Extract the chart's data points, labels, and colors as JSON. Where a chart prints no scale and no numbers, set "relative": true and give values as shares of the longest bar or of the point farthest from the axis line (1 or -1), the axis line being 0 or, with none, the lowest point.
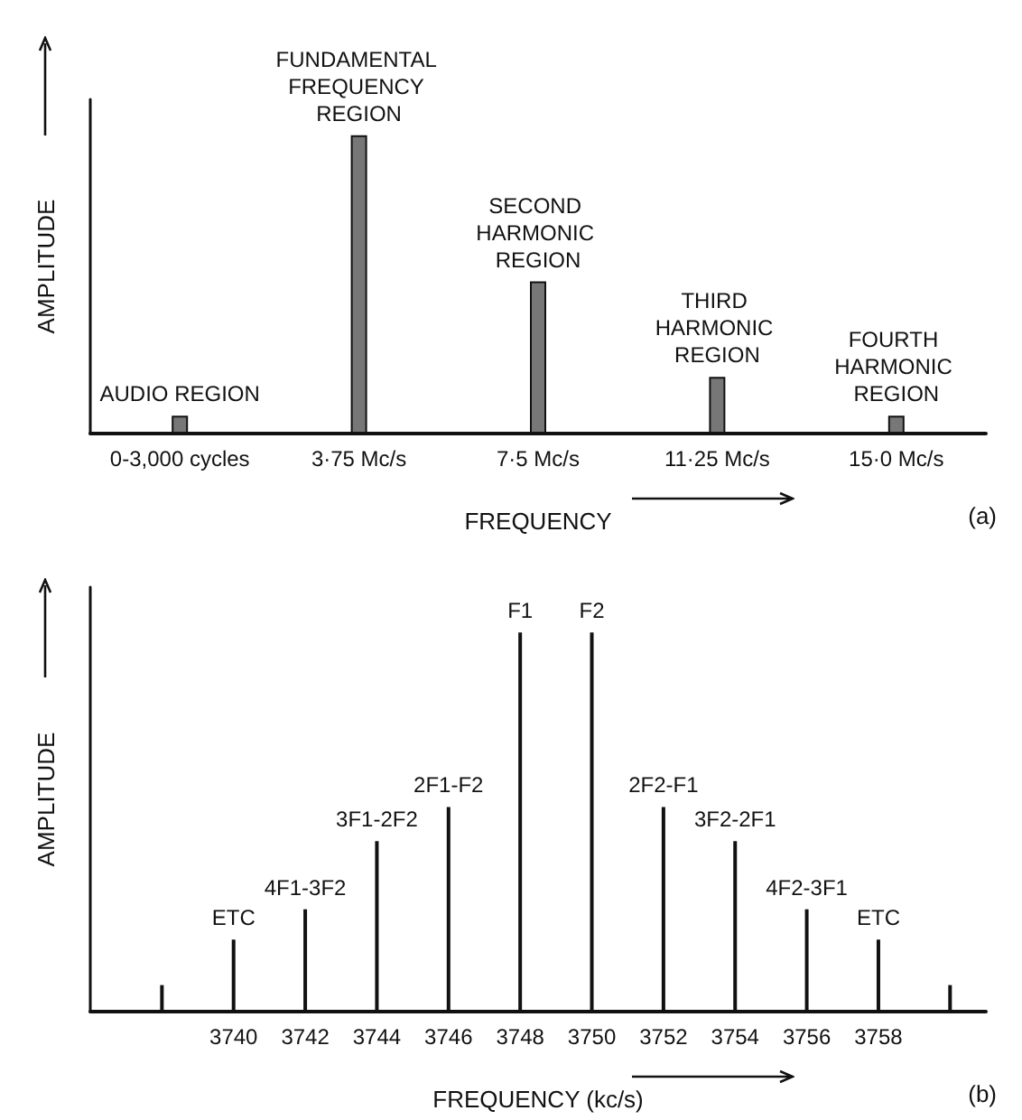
{
  "chart_data": [
    {
      "type": "bar",
      "relative": true,
      "xlabel": "FREQUENCY",
      "ylabel": "AMPLITUDE",
      "categories": [
        "0-3,000 cycles",
        "3·75 Mc/s",
        "7·5 Mc/s",
        "11·25 Mc/s",
        "15·0 Mc/s"
      ],
      "values": [
        0.06,
        1,
        0.51,
        0.19,
        0.06
      ],
      "color": "#777777",
      "grid": false,
      "annotations": [
        {
          "text": "AUDIO REGION",
          "x": "0-3,000 cycles",
          "y": 0.06
        },
        {
          "text": "FUNDAMENTAL FREQUENCY REGION",
          "x": "3·75 Mc/s",
          "y": 1
        },
        {
          "text": "SECOND HARMONIC REGION",
          "x": "7·5 Mc/s",
          "y": 0.51
        },
        {
          "text": "THIRD HARMONIC REGION",
          "x": "11·25 Mc/s",
          "y": 0.19
        },
        {
          "text": "FOURTH HARMONIC REGION",
          "x": "15·0 Mc/s",
          "y": 0.06
        },
        "(a)"
      ]
    },
    {
      "type": "bar",
      "relative": true,
      "xlabel": "FREQUENCY (kc/s)",
      "ylabel": "AMPLITUDE",
      "x": [
        3738,
        3740,
        3742,
        3744,
        3746,
        3748,
        3750,
        3752,
        3754,
        3756,
        3758,
        3760
      ],
      "values": [
        0.07,
        0.19,
        0.27,
        0.45,
        0.54,
        1,
        1,
        0.54,
        0.45,
        0.27,
        0.19,
        0.07
      ],
      "color": "#111111",
      "xlim": [
        3736,
        3761
      ],
      "xticks": [
        3740,
        3742,
        3744,
        3746,
        3748,
        3750,
        3752,
        3754,
        3756,
        3758
      ],
      "grid": false,
      "tick_labels": "x",
      "annotations": [
        {
          "text": "ETC",
          "x": 3740,
          "y": 0.19
        },
        {
          "text": "4F1-3F2",
          "x": 3742,
          "y": 0.27
        },
        {
          "text": "3F1-2F2",
          "x": 3744,
          "y": 0.45
        },
        {
          "text": "2F1-F2",
          "x": 3746,
          "y": 0.54
        },
        {
          "text": "F1",
          "x": 3748,
          "y": 1
        },
        {
          "text": "F2",
          "x": 3750,
          "y": 1
        },
        {
          "text": "2F2-F1",
          "x": 3752,
          "y": 0.54
        },
        {
          "text": "3F2-2F1",
          "x": 3754,
          "y": 0.45
        },
        {
          "text": "4F2-3F1",
          "x": 3756,
          "y": 0.27
        },
        {
          "text": "ETC",
          "x": 3758,
          "y": 0.19
        },
        "(b)"
      ]
    }
  ]
}
